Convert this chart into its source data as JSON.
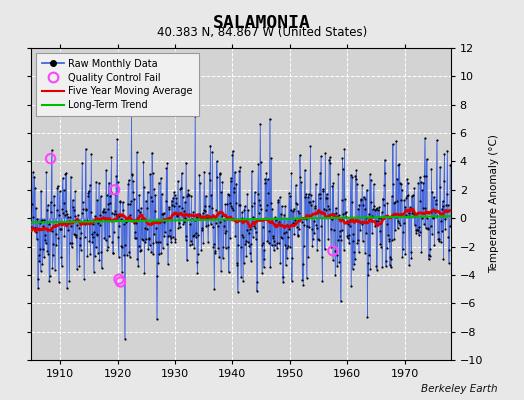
{
  "title": "SALAMONIA",
  "subtitle": "40.383 N, 84.867 W (United States)",
  "ylabel": "Temperature Anomaly (°C)",
  "attribution": "Berkeley Earth",
  "xlim": [
    1905,
    1978
  ],
  "ylim": [
    -10,
    12
  ],
  "yticks": [
    -10,
    -8,
    -6,
    -4,
    -2,
    0,
    2,
    4,
    6,
    8,
    10,
    12
  ],
  "xticks": [
    1910,
    1920,
    1930,
    1940,
    1950,
    1960,
    1970
  ],
  "start_year": 1905,
  "end_year": 1977,
  "bg_color": "#e8e8e8",
  "plot_bg_color": "#d3d3d3",
  "raw_line_color": "#4466dd",
  "raw_dot_color": "#000000",
  "moving_avg_color": "#dd0000",
  "trend_color": "#00bb00",
  "qc_fail_color": "#ff44ff",
  "seed": 42,
  "trend_slope": 0.006,
  "trend_intercept": -0.3,
  "moving_avg_window": 60,
  "qc_fail_points": [
    [
      1908.33,
      4.2
    ],
    [
      1919.5,
      2.0
    ],
    [
      1920.25,
      -4.3
    ],
    [
      1920.5,
      -4.5
    ],
    [
      1957.5,
      -2.3
    ]
  ]
}
